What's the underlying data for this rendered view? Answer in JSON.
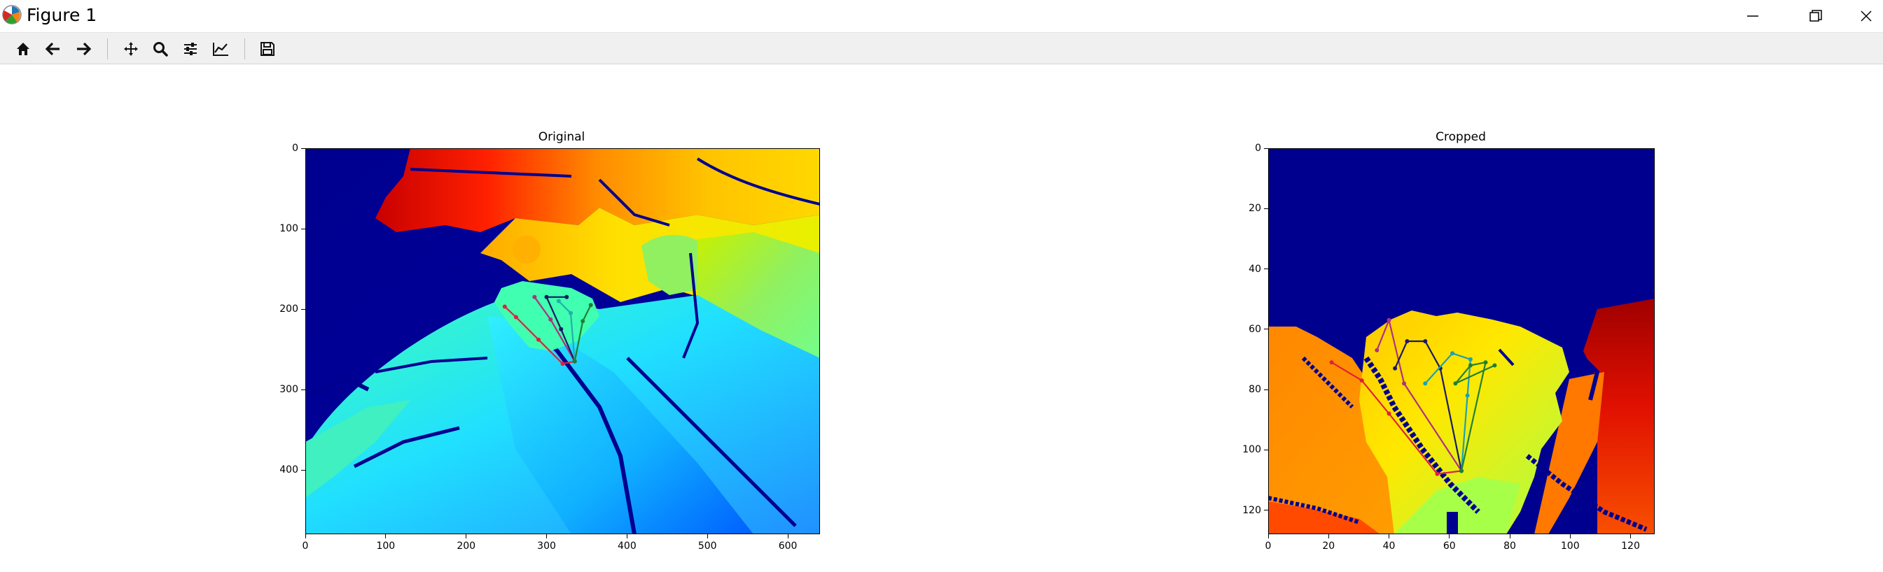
{
  "window": {
    "title": "Figure 1",
    "controls": [
      "minimize",
      "restore",
      "close"
    ]
  },
  "toolbar": {
    "buttons": [
      {
        "name": "home",
        "icon": "home-icon",
        "tooltip": "Reset original view"
      },
      {
        "name": "back",
        "icon": "arrow-left-icon",
        "tooltip": "Back to previous view"
      },
      {
        "name": "forward",
        "icon": "arrow-right-icon",
        "tooltip": "Forward to next view"
      },
      {
        "name": "pan",
        "icon": "move-icon",
        "tooltip": "Pan axes"
      },
      {
        "name": "zoom",
        "icon": "magnifier-icon",
        "tooltip": "Zoom to rectangle"
      },
      {
        "name": "subplots",
        "icon": "sliders-icon",
        "tooltip": "Configure subplots"
      },
      {
        "name": "customize",
        "icon": "line-chart-icon",
        "tooltip": "Edit axis, curve and image parameters"
      },
      {
        "name": "save",
        "icon": "floppy-disk-icon",
        "tooltip": "Save the figure"
      }
    ]
  },
  "figure": {
    "colormap": "jet",
    "background": "#ffffff"
  },
  "chart_data": [
    {
      "type": "heatmap",
      "title": "Original",
      "xlabel": "",
      "ylabel": "",
      "xlim": [
        0,
        640
      ],
      "ylim": [
        480,
        0
      ],
      "xticks": [
        "0",
        "100",
        "200",
        "300",
        "400",
        "500",
        "600"
      ],
      "yticks": [
        "0",
        "100",
        "200",
        "300",
        "400"
      ],
      "colormap": "jet",
      "hand_joints": {
        "wrist": [
          335,
          265
        ],
        "chains": [
          {
            "color": "#e0203c",
            "points": [
              [
                335,
                265
              ],
              [
                320,
                268
              ],
              [
                290,
                238
              ],
              [
                262,
                210
              ],
              [
                248,
                197
              ]
            ]
          },
          {
            "color": "#b03080",
            "points": [
              [
                335,
                265
              ],
              [
                305,
                213
              ],
              [
                285,
                185
              ]
            ]
          },
          {
            "color": "#1a1a60",
            "points": [
              [
                335,
                265
              ],
              [
                318,
                225
              ],
              [
                300,
                185
              ],
              [
                325,
                185
              ]
            ]
          },
          {
            "color": "#20b0b0",
            "points": [
              [
                335,
                265
              ],
              [
                330,
                205
              ],
              [
                315,
                190
              ]
            ]
          },
          {
            "color": "#208030",
            "points": [
              [
                335,
                265
              ],
              [
                345,
                215
              ],
              [
                355,
                195
              ]
            ]
          }
        ]
      }
    },
    {
      "type": "heatmap",
      "title": "Cropped",
      "xlabel": "",
      "ylabel": "",
      "xlim": [
        0,
        128
      ],
      "ylim": [
        128,
        0
      ],
      "xticks": [
        "0",
        "20",
        "40",
        "60",
        "80",
        "100",
        "120"
      ],
      "yticks": [
        "0",
        "20",
        "40",
        "60",
        "80",
        "100",
        "120"
      ],
      "colormap": "jet",
      "hand_joints": {
        "wrist": [
          64,
          107
        ],
        "chains": [
          {
            "color": "#e0203c",
            "points": [
              [
                64,
                107
              ],
              [
                56,
                108
              ],
              [
                40,
                88
              ],
              [
                31,
                77
              ],
              [
                21,
                71
              ]
            ]
          },
          {
            "color": "#b03080",
            "points": [
              [
                64,
                107
              ],
              [
                45,
                78
              ],
              [
                40,
                57
              ],
              [
                36,
                67
              ]
            ]
          },
          {
            "color": "#1a1a60",
            "points": [
              [
                64,
                107
              ],
              [
                57,
                73
              ],
              [
                52,
                64
              ],
              [
                46,
                64
              ],
              [
                42,
                73
              ]
            ]
          },
          {
            "color": "#20a0b0",
            "points": [
              [
                64,
                107
              ],
              [
                66,
                82
              ],
              [
                67,
                70
              ],
              [
                61,
                68
              ],
              [
                52,
                78
              ]
            ]
          },
          {
            "color": "#208030",
            "points": [
              [
                64,
                107
              ],
              [
                72,
                71
              ],
              [
                67,
                72
              ],
              [
                62,
                78
              ],
              [
                75,
                72
              ]
            ]
          }
        ]
      }
    }
  ]
}
